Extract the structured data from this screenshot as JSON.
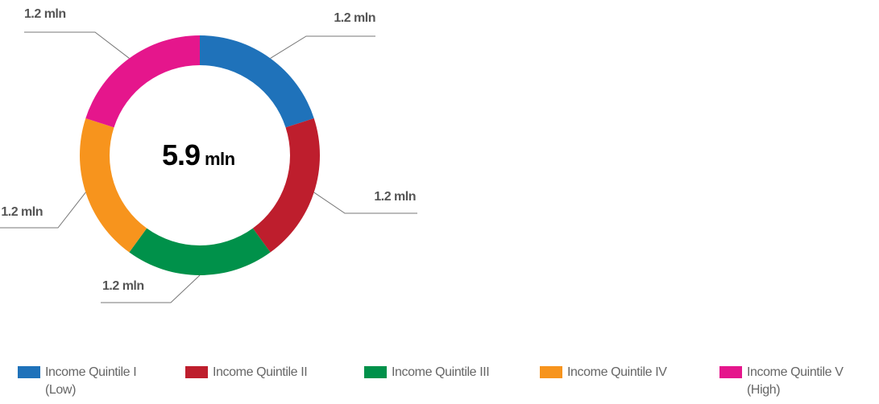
{
  "chart_data": {
    "type": "donut",
    "categories": [
      "Income Quintile I (Low)",
      "Income Quintile II",
      "Income Quintile III",
      "Income Quintile IV",
      "Income Quintile V (High)"
    ],
    "values": [
      1.2,
      1.2,
      1.2,
      1.2,
      1.2
    ],
    "value_labels": [
      "1.2 mln",
      "1.2 mln",
      "1.2 mln",
      "1.2 mln",
      "1.2 mln"
    ],
    "colors": [
      "#1f72ba",
      "#be1e2d",
      "#00914a",
      "#f7941d",
      "#e5168c"
    ],
    "center_value": "5.9",
    "center_unit": "mln"
  }
}
